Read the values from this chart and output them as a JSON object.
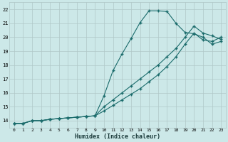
{
  "xlabel": "Humidex (Indice chaleur)",
  "bg_color": "#cce8e8",
  "grid_color": "#b0c8c8",
  "line_color": "#1a6b6b",
  "xlim": [
    -0.5,
    23.5
  ],
  "ylim": [
    13.5,
    22.5
  ],
  "xticks": [
    0,
    1,
    2,
    3,
    4,
    5,
    6,
    7,
    8,
    9,
    10,
    11,
    12,
    13,
    14,
    15,
    16,
    17,
    18,
    19,
    20,
    21,
    22,
    23
  ],
  "yticks": [
    14,
    15,
    16,
    17,
    18,
    19,
    20,
    21,
    22
  ],
  "curve1_x": [
    0,
    1,
    2,
    3,
    4,
    5,
    6,
    7,
    8,
    9,
    10,
    11,
    12,
    13,
    14,
    15,
    16,
    17,
    18,
    19,
    20,
    21,
    22,
    23
  ],
  "curve1_y": [
    13.8,
    13.8,
    14.0,
    14.0,
    14.1,
    14.15,
    14.2,
    14.25,
    14.3,
    14.35,
    15.8,
    17.6,
    18.8,
    19.9,
    21.05,
    21.9,
    21.9,
    21.85,
    21.0,
    20.35,
    20.25,
    20.0,
    19.5,
    19.7
  ],
  "curve2_x": [
    0,
    1,
    2,
    3,
    4,
    5,
    6,
    7,
    8,
    9,
    10,
    11,
    12,
    13,
    14,
    15,
    16,
    17,
    18,
    19,
    20,
    21,
    22,
    23
  ],
  "curve2_y": [
    13.8,
    13.8,
    14.0,
    14.0,
    14.1,
    14.15,
    14.2,
    14.25,
    14.3,
    14.35,
    15.0,
    15.5,
    16.0,
    16.5,
    17.0,
    17.5,
    18.0,
    18.6,
    19.2,
    20.0,
    20.8,
    20.3,
    20.1,
    19.85
  ],
  "curve3_x": [
    0,
    1,
    2,
    3,
    4,
    5,
    6,
    7,
    8,
    9,
    10,
    11,
    12,
    13,
    14,
    15,
    16,
    17,
    18,
    19,
    20,
    21,
    22,
    23
  ],
  "curve3_y": [
    13.8,
    13.8,
    14.0,
    14.0,
    14.1,
    14.15,
    14.2,
    14.25,
    14.3,
    14.35,
    14.7,
    15.1,
    15.5,
    15.9,
    16.3,
    16.8,
    17.3,
    17.9,
    18.6,
    19.5,
    20.3,
    19.8,
    19.7,
    20.0
  ]
}
